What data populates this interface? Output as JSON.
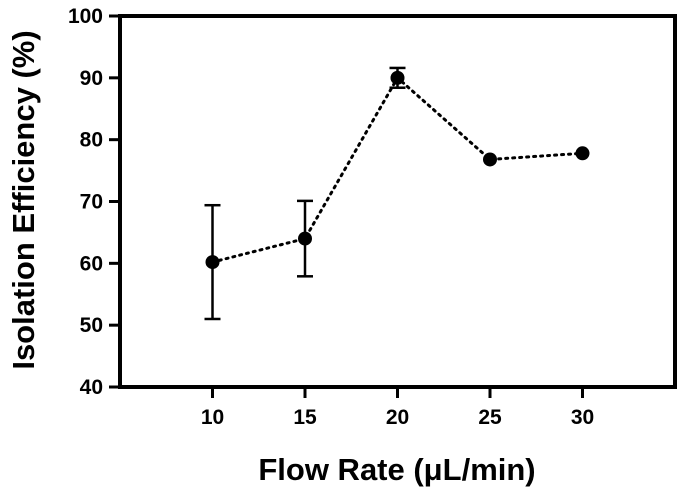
{
  "chart_data": {
    "type": "scatter",
    "title": "",
    "xlabel": "Flow Rate (μL/min)",
    "ylabel": "Isolation Efficiency (%)",
    "xlim": [
      5,
      35
    ],
    "ylim": [
      40,
      100
    ],
    "xticks": [
      "10",
      "15",
      "20",
      "25",
      "30"
    ],
    "yticks": [
      "40",
      "50",
      "60",
      "70",
      "80",
      "90",
      "100"
    ],
    "grid": false,
    "legend": "none",
    "series": [
      {
        "x": [
          10,
          15,
          20,
          25,
          30
        ],
        "y": [
          60.2,
          64.0,
          90.0,
          76.8,
          77.8
        ],
        "error": [
          9.2,
          6.1,
          1.6,
          0,
          0
        ],
        "line_style": "dotted",
        "marker": "circle",
        "color": "#000000"
      }
    ]
  }
}
